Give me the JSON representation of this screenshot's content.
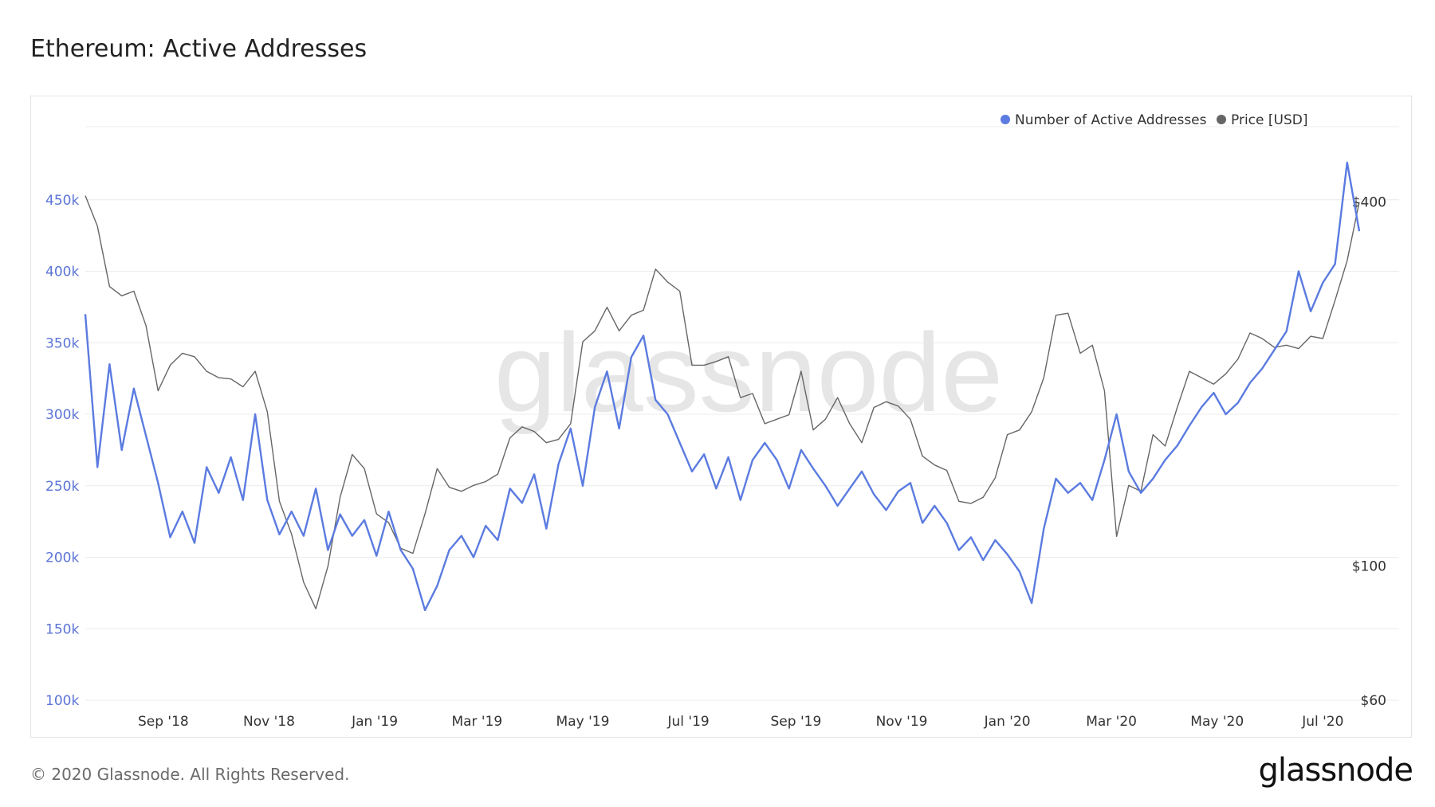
{
  "title": "Ethereum: Active Addresses",
  "footer": {
    "copyright": "© 2020 Glassnode. All Rights Reserved.",
    "logo_text": "glassnode"
  },
  "watermark": "glassnode",
  "colors": {
    "primary": "#5b7be0",
    "secondary": "#666666",
    "grid": "#ececec",
    "left_axis_text": "#5b74d6",
    "right_axis_text": "#333333"
  },
  "chart_data": {
    "type": "line",
    "title": "Ethereum: Active Addresses",
    "legend": {
      "position": "top-right",
      "items": [
        {
          "name": "Number of Active Addresses",
          "color": "#5b7be0"
        },
        {
          "name": "Price [USD]",
          "color": "#666666"
        }
      ]
    },
    "x_ticks": [
      "Sep '18",
      "Nov '18",
      "Jan '19",
      "Mar '19",
      "May '19",
      "Jul '19",
      "Sep '19",
      "Nov '19",
      "Jan '20",
      "Mar '20",
      "May '20",
      "Jul '20"
    ],
    "x_range": [
      "2018-08-01",
      "2020-08-05"
    ],
    "y_left": {
      "label": "",
      "ticks": [
        "100k",
        "150k",
        "200k",
        "250k",
        "300k",
        "350k",
        "400k",
        "450k"
      ],
      "range": [
        100000,
        500000
      ]
    },
    "y_right": {
      "label": "",
      "scale": "log",
      "ticks": [
        "$60",
        "$100",
        "$400"
      ],
      "range": [
        60,
        530
      ]
    },
    "grid": true,
    "series": [
      {
        "name": "Number of Active Addresses",
        "axis": "left",
        "points": [
          [
            "2018-08-01",
            370000
          ],
          [
            "2018-08-08",
            263000
          ],
          [
            "2018-08-15",
            335000
          ],
          [
            "2018-08-22",
            275000
          ],
          [
            "2018-08-29",
            318000
          ],
          [
            "2018-09-05",
            285000
          ],
          [
            "2018-09-12",
            252000
          ],
          [
            "2018-09-19",
            214000
          ],
          [
            "2018-09-26",
            232000
          ],
          [
            "2018-10-03",
            210000
          ],
          [
            "2018-10-10",
            263000
          ],
          [
            "2018-10-17",
            245000
          ],
          [
            "2018-10-24",
            270000
          ],
          [
            "2018-10-31",
            240000
          ],
          [
            "2018-11-07",
            300000
          ],
          [
            "2018-11-14",
            240000
          ],
          [
            "2018-11-21",
            216000
          ],
          [
            "2018-11-28",
            232000
          ],
          [
            "2018-12-05",
            215000
          ],
          [
            "2018-12-12",
            248000
          ],
          [
            "2018-12-19",
            205000
          ],
          [
            "2018-12-26",
            230000
          ],
          [
            "2019-01-02",
            215000
          ],
          [
            "2019-01-09",
            226000
          ],
          [
            "2019-01-16",
            201000
          ],
          [
            "2019-01-23",
            232000
          ],
          [
            "2019-01-30",
            205000
          ],
          [
            "2019-02-06",
            192000
          ],
          [
            "2019-02-13",
            163000
          ],
          [
            "2019-02-20",
            180000
          ],
          [
            "2019-02-27",
            205000
          ],
          [
            "2019-03-06",
            215000
          ],
          [
            "2019-03-13",
            200000
          ],
          [
            "2019-03-20",
            222000
          ],
          [
            "2019-03-27",
            212000
          ],
          [
            "2019-04-03",
            248000
          ],
          [
            "2019-04-10",
            238000
          ],
          [
            "2019-04-17",
            258000
          ],
          [
            "2019-04-24",
            220000
          ],
          [
            "2019-05-01",
            265000
          ],
          [
            "2019-05-08",
            290000
          ],
          [
            "2019-05-15",
            250000
          ],
          [
            "2019-05-22",
            305000
          ],
          [
            "2019-05-29",
            330000
          ],
          [
            "2019-06-05",
            290000
          ],
          [
            "2019-06-12",
            340000
          ],
          [
            "2019-06-19",
            355000
          ],
          [
            "2019-06-26",
            310000
          ],
          [
            "2019-07-03",
            300000
          ],
          [
            "2019-07-10",
            280000
          ],
          [
            "2019-07-17",
            260000
          ],
          [
            "2019-07-24",
            272000
          ],
          [
            "2019-07-31",
            248000
          ],
          [
            "2019-08-07",
            270000
          ],
          [
            "2019-08-14",
            240000
          ],
          [
            "2019-08-21",
            268000
          ],
          [
            "2019-08-28",
            280000
          ],
          [
            "2019-09-04",
            268000
          ],
          [
            "2019-09-11",
            248000
          ],
          [
            "2019-09-18",
            275000
          ],
          [
            "2019-09-25",
            262000
          ],
          [
            "2019-10-02",
            250000
          ],
          [
            "2019-10-09",
            236000
          ],
          [
            "2019-10-16",
            248000
          ],
          [
            "2019-10-23",
            260000
          ],
          [
            "2019-10-30",
            244000
          ],
          [
            "2019-11-06",
            233000
          ],
          [
            "2019-11-13",
            246000
          ],
          [
            "2019-11-20",
            252000
          ],
          [
            "2019-11-27",
            224000
          ],
          [
            "2019-12-04",
            236000
          ],
          [
            "2019-12-11",
            224000
          ],
          [
            "2019-12-18",
            205000
          ],
          [
            "2019-12-25",
            214000
          ],
          [
            "2020-01-01",
            198000
          ],
          [
            "2020-01-08",
            212000
          ],
          [
            "2020-01-15",
            202000
          ],
          [
            "2020-01-22",
            190000
          ],
          [
            "2020-01-29",
            168000
          ],
          [
            "2020-02-05",
            220000
          ],
          [
            "2020-02-12",
            255000
          ],
          [
            "2020-02-19",
            245000
          ],
          [
            "2020-02-26",
            252000
          ],
          [
            "2020-03-04",
            240000
          ],
          [
            "2020-03-11",
            268000
          ],
          [
            "2020-03-18",
            300000
          ],
          [
            "2020-03-25",
            260000
          ],
          [
            "2020-04-01",
            245000
          ],
          [
            "2020-04-08",
            255000
          ],
          [
            "2020-04-15",
            268000
          ],
          [
            "2020-04-22",
            278000
          ],
          [
            "2020-04-29",
            292000
          ],
          [
            "2020-05-06",
            305000
          ],
          [
            "2020-05-13",
            315000
          ],
          [
            "2020-05-20",
            300000
          ],
          [
            "2020-05-27",
            308000
          ],
          [
            "2020-06-03",
            322000
          ],
          [
            "2020-06-10",
            332000
          ],
          [
            "2020-06-17",
            345000
          ],
          [
            "2020-06-24",
            358000
          ],
          [
            "2020-07-01",
            400000
          ],
          [
            "2020-07-08",
            372000
          ],
          [
            "2020-07-15",
            392000
          ],
          [
            "2020-07-22",
            405000
          ],
          [
            "2020-07-29",
            476000
          ],
          [
            "2020-08-05",
            428000
          ]
        ]
      },
      {
        "name": "Price [USD]",
        "axis": "right",
        "points": [
          [
            "2018-08-01",
            410
          ],
          [
            "2018-08-08",
            365
          ],
          [
            "2018-08-15",
            290
          ],
          [
            "2018-08-22",
            280
          ],
          [
            "2018-08-29",
            285
          ],
          [
            "2018-09-05",
            250
          ],
          [
            "2018-09-12",
            195
          ],
          [
            "2018-09-19",
            215
          ],
          [
            "2018-09-26",
            225
          ],
          [
            "2018-10-03",
            222
          ],
          [
            "2018-10-10",
            210
          ],
          [
            "2018-10-17",
            205
          ],
          [
            "2018-10-24",
            204
          ],
          [
            "2018-10-31",
            198
          ],
          [
            "2018-11-07",
            210
          ],
          [
            "2018-11-14",
            180
          ],
          [
            "2018-11-21",
            128
          ],
          [
            "2018-11-28",
            113
          ],
          [
            "2018-12-05",
            94
          ],
          [
            "2018-12-12",
            85
          ],
          [
            "2018-12-19",
            100
          ],
          [
            "2018-12-26",
            130
          ],
          [
            "2019-01-02",
            153
          ],
          [
            "2019-01-09",
            145
          ],
          [
            "2019-01-16",
            122
          ],
          [
            "2019-01-23",
            118
          ],
          [
            "2019-01-30",
            107
          ],
          [
            "2019-02-06",
            105
          ],
          [
            "2019-02-13",
            122
          ],
          [
            "2019-02-20",
            145
          ],
          [
            "2019-02-27",
            135
          ],
          [
            "2019-03-06",
            133
          ],
          [
            "2019-03-13",
            136
          ],
          [
            "2019-03-20",
            138
          ],
          [
            "2019-03-27",
            142
          ],
          [
            "2019-04-03",
            163
          ],
          [
            "2019-04-10",
            170
          ],
          [
            "2019-04-17",
            167
          ],
          [
            "2019-04-24",
            160
          ],
          [
            "2019-05-01",
            162
          ],
          [
            "2019-05-08",
            172
          ],
          [
            "2019-05-15",
            235
          ],
          [
            "2019-05-22",
            245
          ],
          [
            "2019-05-29",
            268
          ],
          [
            "2019-06-05",
            245
          ],
          [
            "2019-06-12",
            260
          ],
          [
            "2019-06-19",
            265
          ],
          [
            "2019-06-26",
            310
          ],
          [
            "2019-07-03",
            295
          ],
          [
            "2019-07-10",
            285
          ],
          [
            "2019-07-17",
            215
          ],
          [
            "2019-07-24",
            215
          ],
          [
            "2019-07-31",
            218
          ],
          [
            "2019-08-07",
            222
          ],
          [
            "2019-08-14",
            190
          ],
          [
            "2019-08-21",
            193
          ],
          [
            "2019-08-28",
            172
          ],
          [
            "2019-09-04",
            175
          ],
          [
            "2019-09-11",
            178
          ],
          [
            "2019-09-18",
            210
          ],
          [
            "2019-09-25",
            168
          ],
          [
            "2019-10-02",
            175
          ],
          [
            "2019-10-09",
            190
          ],
          [
            "2019-10-16",
            172
          ],
          [
            "2019-10-23",
            160
          ],
          [
            "2019-10-30",
            183
          ],
          [
            "2019-11-06",
            187
          ],
          [
            "2019-11-13",
            184
          ],
          [
            "2019-11-20",
            175
          ],
          [
            "2019-11-27",
            152
          ],
          [
            "2019-12-04",
            147
          ],
          [
            "2019-12-11",
            144
          ],
          [
            "2019-12-18",
            128
          ],
          [
            "2019-12-25",
            127
          ],
          [
            "2020-01-01",
            130
          ],
          [
            "2020-01-08",
            140
          ],
          [
            "2020-01-15",
            165
          ],
          [
            "2020-01-22",
            168
          ],
          [
            "2020-01-29",
            180
          ],
          [
            "2020-02-05",
            205
          ],
          [
            "2020-02-12",
            260
          ],
          [
            "2020-02-19",
            262
          ],
          [
            "2020-02-26",
            225
          ],
          [
            "2020-03-04",
            232
          ],
          [
            "2020-03-11",
            195
          ],
          [
            "2020-03-18",
            112
          ],
          [
            "2020-03-25",
            136
          ],
          [
            "2020-04-01",
            133
          ],
          [
            "2020-04-08",
            165
          ],
          [
            "2020-04-15",
            158
          ],
          [
            "2020-04-22",
            183
          ],
          [
            "2020-04-29",
            210
          ],
          [
            "2020-05-06",
            205
          ],
          [
            "2020-05-13",
            200
          ],
          [
            "2020-05-20",
            208
          ],
          [
            "2020-05-27",
            220
          ],
          [
            "2020-06-03",
            243
          ],
          [
            "2020-06-10",
            238
          ],
          [
            "2020-06-17",
            230
          ],
          [
            "2020-06-24",
            232
          ],
          [
            "2020-07-01",
            229
          ],
          [
            "2020-07-08",
            240
          ],
          [
            "2020-07-15",
            238
          ],
          [
            "2020-07-22",
            275
          ],
          [
            "2020-07-29",
            320
          ],
          [
            "2020-08-05",
            400
          ]
        ]
      }
    ]
  }
}
